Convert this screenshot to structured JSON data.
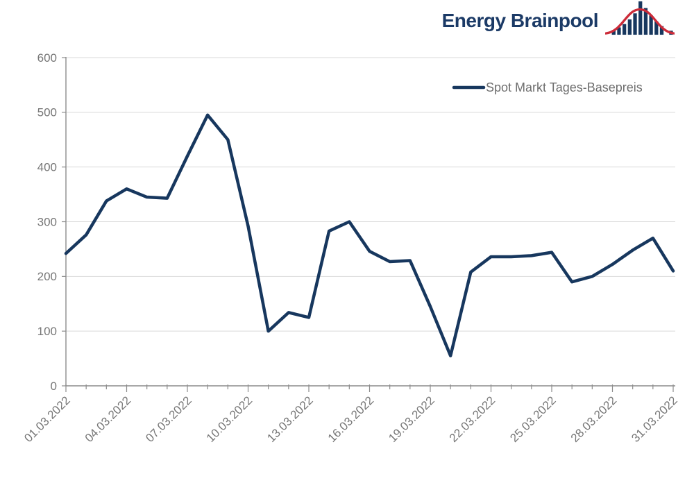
{
  "logo": {
    "text": "Energy Brainpool",
    "text_color": "#1b3a66",
    "bar_color": "#17375e",
    "curve_color": "#cc2b39"
  },
  "legend": {
    "label": "Spot Markt Tages-Basepreis"
  },
  "chart_data": {
    "type": "line",
    "title": "",
    "xlabel": "",
    "ylabel": "",
    "ylim": [
      0,
      600
    ],
    "y_ticks": [
      0,
      100,
      200,
      300,
      400,
      500,
      600
    ],
    "grid": true,
    "legend_position": "top-right",
    "x_major_tick_every": 3,
    "x": [
      "01.03.2022",
      "02.03.2022",
      "03.03.2022",
      "04.03.2022",
      "05.03.2022",
      "06.03.2022",
      "07.03.2022",
      "08.03.2022",
      "09.03.2022",
      "10.03.2022",
      "11.03.2022",
      "12.03.2022",
      "13.03.2022",
      "14.03.2022",
      "15.03.2022",
      "16.03.2022",
      "17.03.2022",
      "18.03.2022",
      "19.03.2022",
      "20.03.2022",
      "21.03.2022",
      "22.03.2022",
      "23.03.2022",
      "24.03.2022",
      "25.03.2022",
      "26.03.2022",
      "27.03.2022",
      "28.03.2022",
      "29.03.2022",
      "30.03.2022",
      "31.03.2022"
    ],
    "series": [
      {
        "name": "Spot Markt Tages-Basepreis",
        "color": "#17375e",
        "values": [
          242,
          276,
          338,
          360,
          345,
          343,
          420,
          495,
          450,
          292,
          100,
          134,
          125,
          283,
          300,
          246,
          227,
          229,
          145,
          55,
          208,
          236,
          236,
          238,
          244,
          190,
          200,
          222,
          248,
          270,
          210
        ]
      }
    ]
  }
}
